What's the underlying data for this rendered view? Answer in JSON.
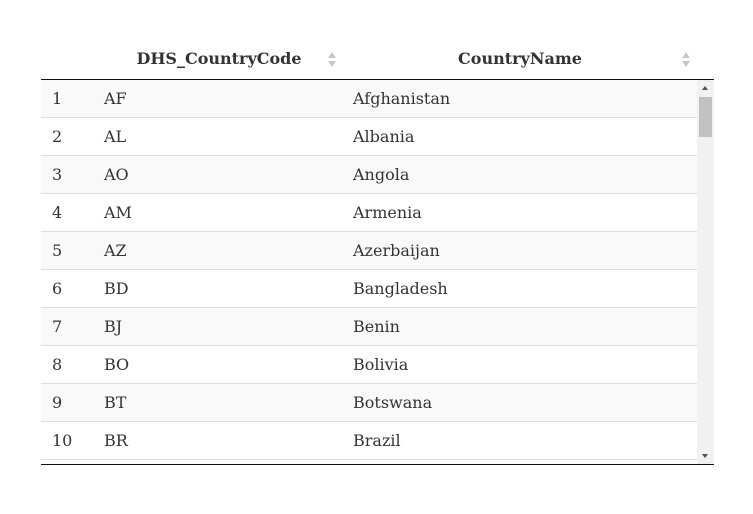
{
  "table": {
    "columns": [
      {
        "label": "DHS_CountryCode",
        "sort_icon": "sort-both-icon"
      },
      {
        "label": "CountryName",
        "sort_icon": "sort-both-icon"
      }
    ],
    "rows": [
      {
        "index": "1",
        "code": "AF",
        "name": "Afghanistan"
      },
      {
        "index": "2",
        "code": "AL",
        "name": "Albania"
      },
      {
        "index": "3",
        "code": "AO",
        "name": "Angola"
      },
      {
        "index": "4",
        "code": "AM",
        "name": "Armenia"
      },
      {
        "index": "5",
        "code": "AZ",
        "name": "Azerbaijan"
      },
      {
        "index": "6",
        "code": "BD",
        "name": "Bangladesh"
      },
      {
        "index": "7",
        "code": "BJ",
        "name": "Benin"
      },
      {
        "index": "8",
        "code": "BO",
        "name": "Bolivia"
      },
      {
        "index": "9",
        "code": "BT",
        "name": "Botswana"
      },
      {
        "index": "10",
        "code": "BR",
        "name": "Brazil"
      }
    ]
  },
  "colors": {
    "odd_row": "#f9f9f9",
    "even_row": "#ffffff",
    "border": "#dddddd",
    "header_rule": "#111111"
  }
}
